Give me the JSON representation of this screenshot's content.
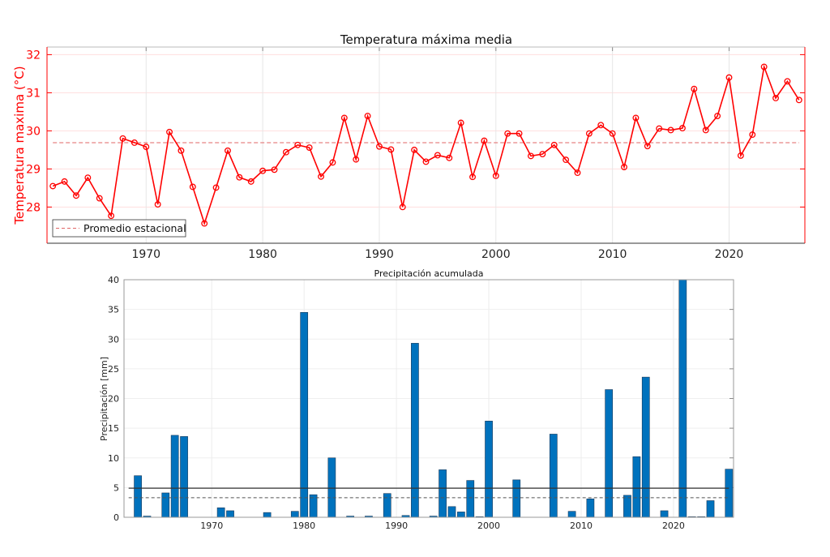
{
  "chart_data": [
    {
      "type": "line",
      "title": "Temperatura máxima media",
      "xlabel": "",
      "ylabel": "Temperatura maxima (°C)",
      "xlim": [
        1961.5,
        2026.5
      ],
      "ylim": [
        27.05,
        32.2
      ],
      "xticks": [
        1970,
        1980,
        1990,
        2000,
        2010,
        2020
      ],
      "yticks": [
        28,
        29,
        30,
        31,
        32
      ],
      "grid": true,
      "legend": {
        "entries": [
          "Promedio estacional"
        ],
        "placement": "bottom-left"
      },
      "colors": {
        "series": "#ff0000",
        "mean": "#e06666"
      },
      "mean_line": {
        "name": "Promedio estacional",
        "value": 29.69
      },
      "series": [
        {
          "x": [
            1962,
            1963,
            1964,
            1965,
            1966,
            1967,
            1968,
            1969,
            1970,
            1971,
            1972,
            1973,
            1974,
            1975,
            1976,
            1977,
            1978,
            1979,
            1980,
            1981,
            1982,
            1983,
            1984,
            1985,
            1986,
            1987,
            1988,
            1989,
            1990,
            1991,
            1992,
            1993,
            1994,
            1995,
            1996,
            1997,
            1998,
            1999,
            2000,
            2001,
            2002,
            2003,
            2004,
            2005,
            2006,
            2007,
            2008,
            2009,
            2010,
            2011,
            2012,
            2013,
            2014,
            2015,
            2016,
            2017,
            2018,
            2019,
            2020,
            2021,
            2022,
            2023,
            2024,
            2025,
            2026
          ],
          "values": [
            28.55,
            28.67,
            28.3,
            28.77,
            28.23,
            27.77,
            29.8,
            29.69,
            29.58,
            28.07,
            29.97,
            29.48,
            28.53,
            27.57,
            28.51,
            29.48,
            28.78,
            28.67,
            28.95,
            28.98,
            29.44,
            29.63,
            29.56,
            28.8,
            29.17,
            30.34,
            29.25,
            30.39,
            29.59,
            29.51,
            28.0,
            29.5,
            29.19,
            29.36,
            29.29,
            30.21,
            28.79,
            29.74,
            28.82,
            29.93,
            29.93,
            29.34,
            29.39,
            29.63,
            29.24,
            28.9,
            29.93,
            30.15,
            29.93,
            29.05,
            30.34,
            29.6,
            30.06,
            30.02,
            30.07,
            31.1,
            30.02,
            30.39,
            31.4,
            29.35,
            29.9,
            31.68,
            30.86,
            31.3,
            30.81
          ]
        }
      ]
    },
    {
      "type": "bar",
      "title": "Precipitación acumulada",
      "xlabel": "",
      "ylabel": "Precipitación [mm]",
      "xlim": [
        1960.5,
        2026.5
      ],
      "ylim": [
        0,
        40
      ],
      "xticks": [
        1970,
        1980,
        1990,
        2000,
        2010,
        2020
      ],
      "yticks": [
        0,
        5,
        10,
        15,
        20,
        25,
        30,
        35,
        40
      ],
      "grid": true,
      "colors": {
        "bars": "#0072bd"
      },
      "reference_lines": [
        {
          "style": "solid",
          "value": 4.9
        },
        {
          "style": "dashed",
          "value": 3.3
        }
      ],
      "series": [
        {
          "x": [
            1962,
            1963,
            1964,
            1965,
            1966,
            1967,
            1968,
            1969,
            1970,
            1971,
            1972,
            1973,
            1974,
            1975,
            1976,
            1977,
            1978,
            1979,
            1980,
            1981,
            1982,
            1983,
            1984,
            1985,
            1986,
            1987,
            1988,
            1989,
            1990,
            1991,
            1992,
            1993,
            1994,
            1995,
            1996,
            1997,
            1998,
            1999,
            2000,
            2001,
            2002,
            2003,
            2004,
            2005,
            2006,
            2007,
            2008,
            2009,
            2010,
            2011,
            2012,
            2013,
            2014,
            2015,
            2016,
            2017,
            2018,
            2019,
            2020,
            2021,
            2022,
            2023,
            2024,
            2025,
            2026
          ],
          "values": [
            7.0,
            0.2,
            0,
            4.1,
            13.8,
            13.6,
            0,
            0,
            0,
            1.6,
            1.1,
            0,
            0,
            0,
            0.8,
            0,
            0,
            1.0,
            34.5,
            3.8,
            0,
            10.0,
            0,
            0.2,
            0,
            0.2,
            0,
            4.0,
            0,
            0.3,
            29.3,
            0,
            0.2,
            8.0,
            1.8,
            0.9,
            6.2,
            0.1,
            16.2,
            0,
            0,
            6.3,
            0,
            0,
            0,
            14.0,
            0,
            1.0,
            0,
            3.1,
            0,
            21.5,
            0,
            3.7,
            10.2,
            23.6,
            0,
            1.1,
            0,
            40,
            0.1,
            0.1,
            2.8,
            0,
            8.1
          ]
        }
      ]
    }
  ]
}
